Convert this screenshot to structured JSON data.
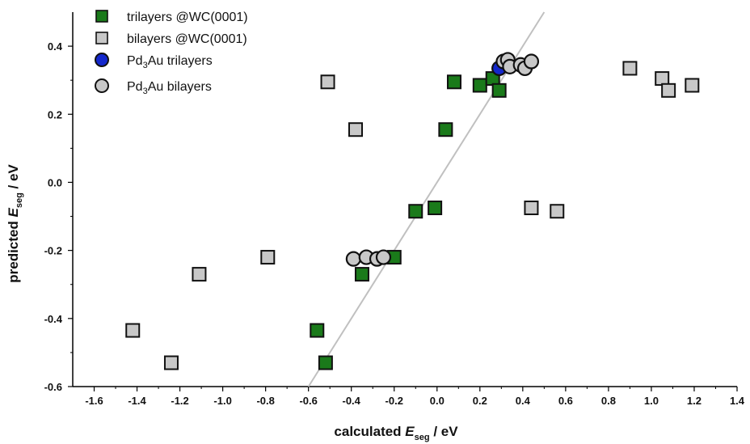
{
  "chart_data": {
    "type": "scatter",
    "xlabel": {
      "pre": "calculated ",
      "var": "E",
      "sub": "seg",
      "post": " / eV"
    },
    "ylabel": {
      "pre": "predicted ",
      "var": "E",
      "sub": "seg",
      "post": " / eV"
    },
    "xlim": [
      -1.7,
      1.4
    ],
    "ylim": [
      -0.6,
      0.5
    ],
    "xticks": [
      -1.6,
      -1.4,
      -1.2,
      -1.0,
      -0.8,
      -0.6,
      -0.4,
      -0.2,
      0.0,
      0.2,
      0.4,
      0.6,
      0.8,
      1.0,
      1.2,
      1.4
    ],
    "xtick_labels": [
      "-1.6",
      "-1.4",
      "-1.2",
      "-1.0",
      "-0.8",
      "-0.6",
      "-0.4",
      "-0.2",
      "0.0",
      "0.2",
      "0.4",
      "0.6",
      "0.8",
      "1.0",
      "1.2",
      "1.4"
    ],
    "yticks": [
      -0.6,
      -0.4,
      -0.2,
      0.0,
      0.2,
      0.4
    ],
    "ytick_labels": [
      "-0.6",
      "-0.4",
      "-0.2",
      "0.0",
      "0.2",
      "0.4"
    ],
    "legend_position": "top-left",
    "grid": false,
    "reference_line": {
      "type": "y=x",
      "color": "#c0c0c0"
    },
    "series": [
      {
        "name": "trilayers @WC(0001)",
        "marker": "square",
        "color": "#1a7a1a",
        "points": [
          [
            -0.52,
            -0.53
          ],
          [
            -0.56,
            -0.435
          ],
          [
            -0.35,
            -0.27
          ],
          [
            -0.2,
            -0.22
          ],
          [
            -0.1,
            -0.085
          ],
          [
            -0.01,
            -0.075
          ],
          [
            0.04,
            0.155
          ],
          [
            0.08,
            0.295
          ],
          [
            0.2,
            0.285
          ],
          [
            0.26,
            0.305
          ],
          [
            0.29,
            0.27
          ]
        ]
      },
      {
        "name": "bilayers @WC(0001)",
        "marker": "square",
        "color": "#c8c8c8",
        "points": [
          [
            -1.42,
            -0.435
          ],
          [
            -1.24,
            -0.53
          ],
          [
            -1.11,
            -0.27
          ],
          [
            -0.79,
            -0.22
          ],
          [
            -0.38,
            0.155
          ],
          [
            -0.51,
            0.295
          ],
          [
            0.44,
            -0.075
          ],
          [
            0.56,
            -0.085
          ],
          [
            0.9,
            0.335
          ],
          [
            1.05,
            0.305
          ],
          [
            1.08,
            0.27
          ],
          [
            1.19,
            0.285
          ]
        ]
      },
      {
        "name_parts": {
          "pre": "Pd",
          "sub": "3",
          "post": "Au trilayers"
        },
        "marker": "circle",
        "color": "#1428cc",
        "points": [
          [
            0.29,
            0.335
          ]
        ]
      },
      {
        "name_parts": {
          "pre": "Pd",
          "sub": "3",
          "post": "Au bilayers"
        },
        "marker": "circle",
        "color": "#c8c8c8",
        "points": [
          [
            -0.39,
            -0.225
          ],
          [
            -0.33,
            -0.22
          ],
          [
            -0.28,
            -0.225
          ],
          [
            -0.25,
            -0.22
          ],
          [
            0.31,
            0.355
          ],
          [
            0.33,
            0.36
          ],
          [
            0.34,
            0.34
          ],
          [
            0.39,
            0.345
          ],
          [
            0.41,
            0.335
          ],
          [
            0.44,
            0.355
          ]
        ]
      }
    ]
  }
}
